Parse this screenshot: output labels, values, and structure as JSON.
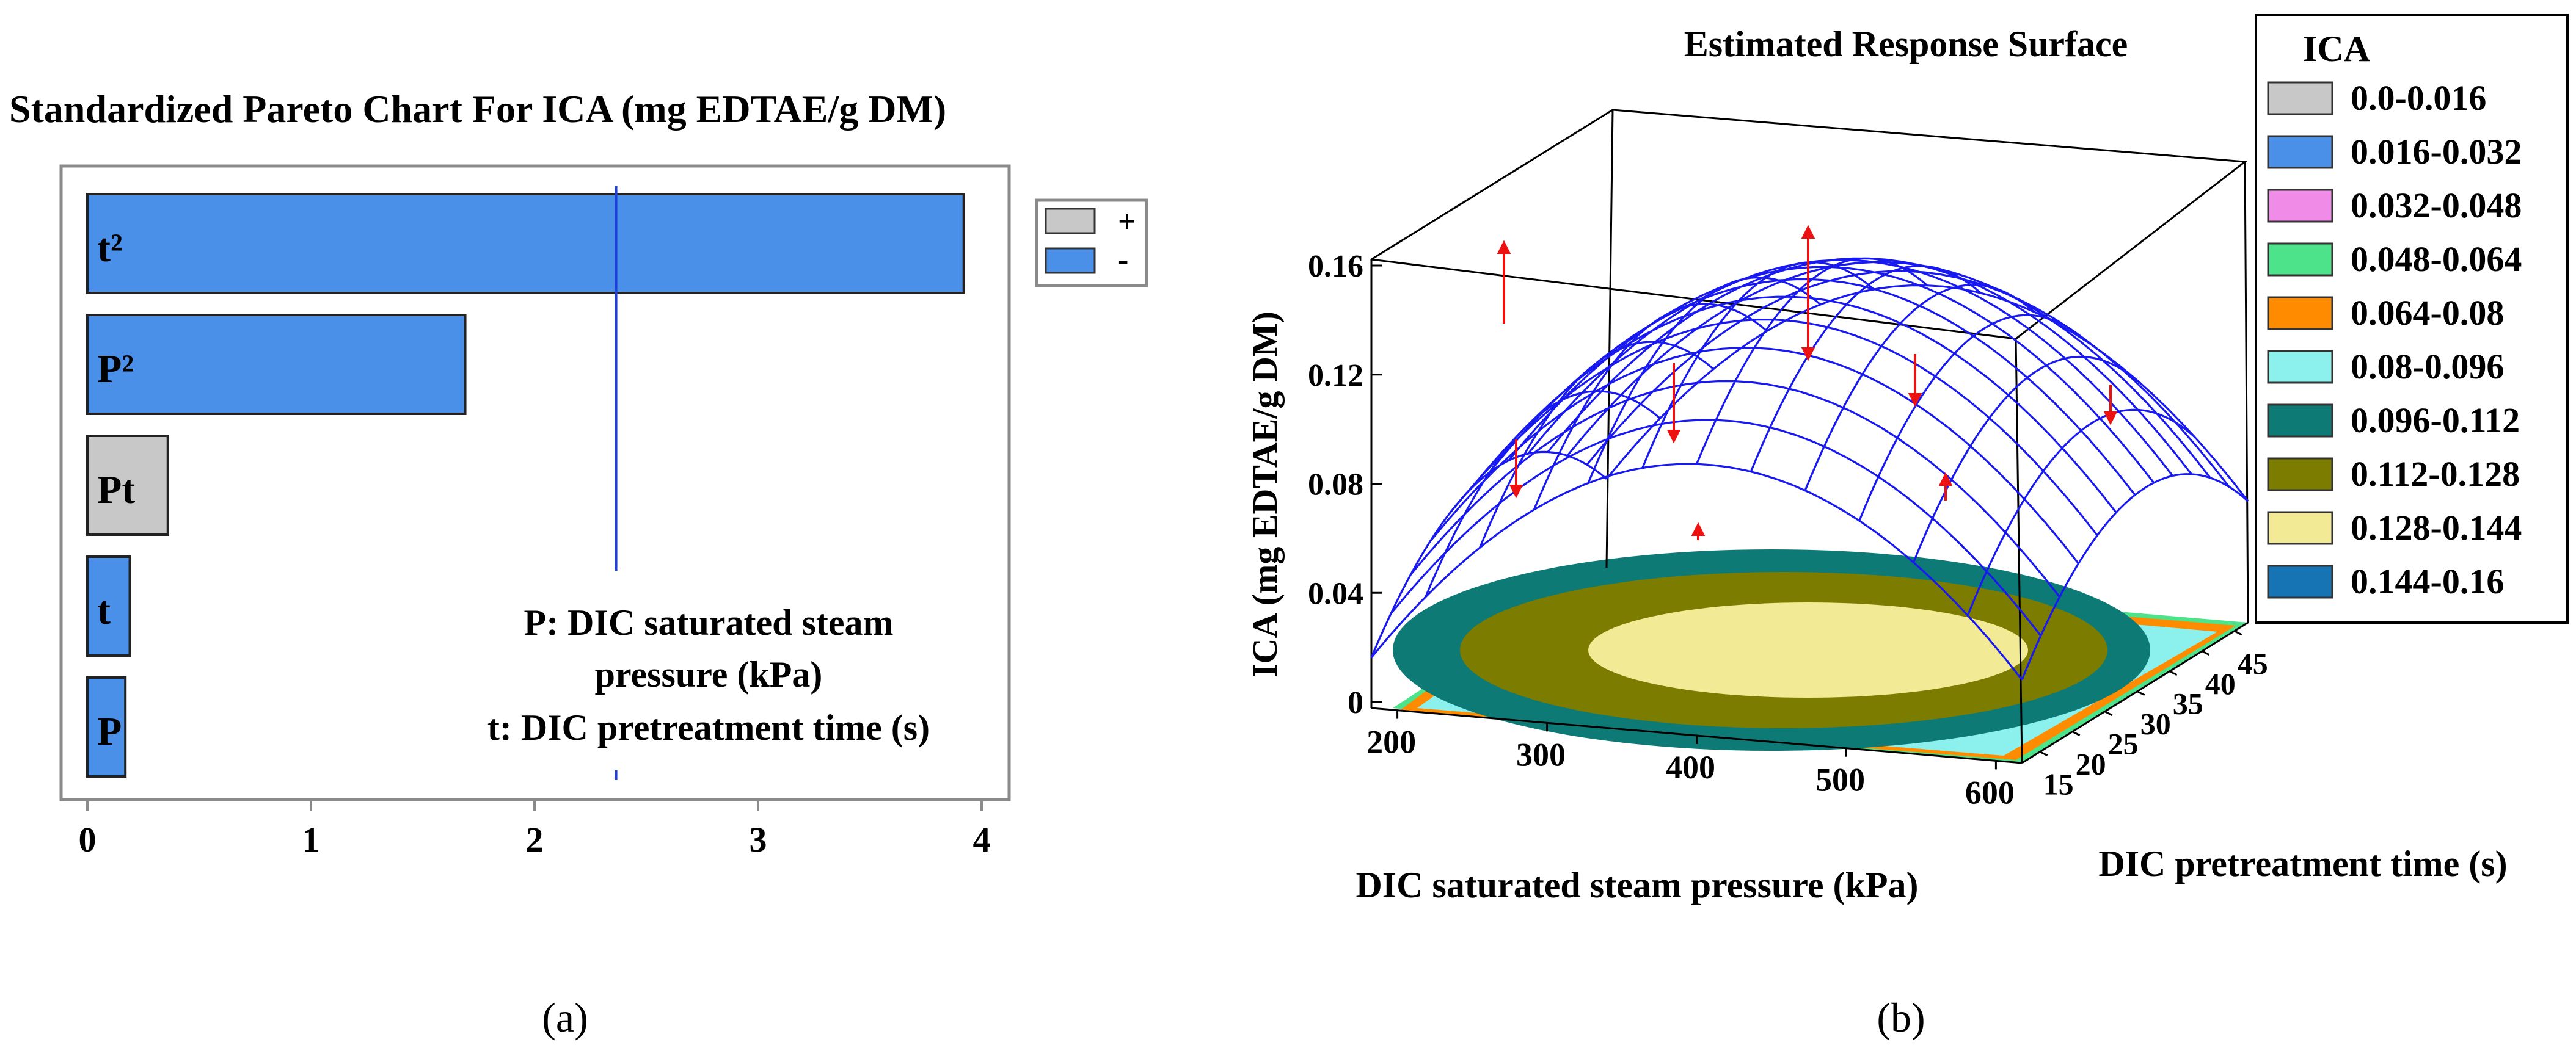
{
  "figure": {
    "caption_a": "(a)",
    "caption_b": "(b)"
  },
  "chart_data": [
    {
      "type": "bar",
      "orientation": "horizontal",
      "title": "Standardized Pareto Chart For ICA (mg EDTAE/g DM)",
      "categories": [
        "t²",
        "P²",
        "Pt",
        "t",
        "P"
      ],
      "values": [
        3.92,
        1.69,
        0.36,
        0.19,
        0.17
      ],
      "signs": [
        "-",
        "-",
        "+",
        "-",
        "-"
      ],
      "xlim": [
        0,
        4
      ],
      "xticks": [
        0,
        1,
        2,
        3,
        4
      ],
      "reference_line": 2.365,
      "legend": [
        {
          "label": "+",
          "color": "#c8c8c8"
        },
        {
          "label": "-",
          "color": "#4a8fe8"
        }
      ],
      "annotation_lines": [
        "P: DIC saturated steam",
        "pressure (kPa)",
        "t: DIC pretreatment time (s)"
      ],
      "colors": {
        "positive": "#c8c8c8",
        "negative": "#4a8fe8",
        "reference": "#1f3fe0"
      }
    },
    {
      "type": "surface",
      "title": "Estimated Response Surface",
      "xlabel": "DIC saturated steam pressure (kPa)",
      "ylabel": "DIC pretreatment time (s)",
      "zlabel": "ICA (mg EDTAE/g DM)",
      "xticks": [
        200,
        300,
        400,
        500,
        600
      ],
      "yticks": [
        15,
        20,
        25,
        30,
        35,
        40,
        45
      ],
      "zticks": [
        "0",
        "0.04",
        "0.08",
        "0.12",
        "0.16"
      ],
      "zlim": [
        0,
        0.16
      ],
      "legend_title": "ICA",
      "legend": [
        {
          "label": "0.0-0.016",
          "color": "#c8c8c8"
        },
        {
          "label": "0.016-0.032",
          "color": "#4a8fe8"
        },
        {
          "label": "0.032-0.048",
          "color": "#f08ce8"
        },
        {
          "label": "0.048-0.064",
          "color": "#4de38a"
        },
        {
          "label": "0.064-0.08",
          "color": "#ff8c00"
        },
        {
          "label": "0.08-0.096",
          "color": "#8cf0ec"
        },
        {
          "label": "0.096-0.112",
          "color": "#0e7a76"
        },
        {
          "label": "0.112-0.128",
          "color": "#7c7c00"
        },
        {
          "label": "0.128-0.144",
          "color": "#f2ea94"
        },
        {
          "label": "0.144-0.16",
          "color": "#1674b4"
        }
      ],
      "mesh_color": "#1818f0",
      "residual_color": "#ee1111"
    }
  ]
}
